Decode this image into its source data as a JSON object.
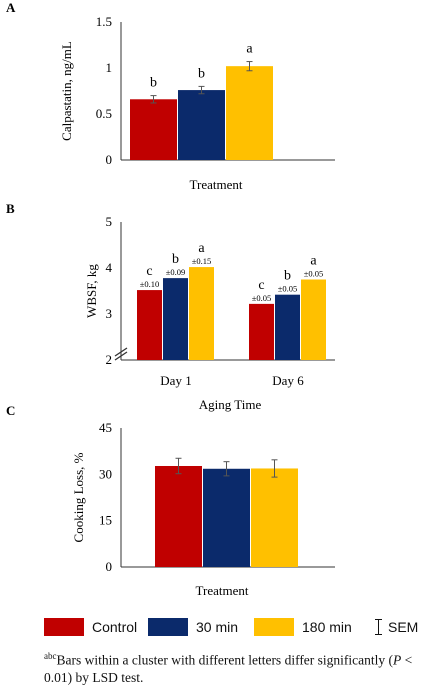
{
  "chart_data": [
    {
      "type": "bar",
      "panel": "A",
      "title": "",
      "xlabel": "Treatment",
      "ylabel": "Calpastatin, ng/mL",
      "ylim": [
        0,
        1.5
      ],
      "yticks": [
        "0",
        "0.5",
        "1",
        "1.5"
      ],
      "categories": [
        ""
      ],
      "series": [
        {
          "name": "Control",
          "values": [
            0.66
          ],
          "errors": [
            0.04
          ],
          "letters": [
            "b"
          ]
        },
        {
          "name": "30 min",
          "values": [
            0.76
          ],
          "errors": [
            0.04
          ],
          "letters": [
            "b"
          ]
        },
        {
          "name": "180 min",
          "values": [
            1.02
          ],
          "errors": [
            0.05
          ],
          "letters": [
            "a"
          ]
        }
      ],
      "grid": false
    },
    {
      "type": "bar",
      "panel": "B",
      "title": "",
      "xlabel": "Aging Time",
      "ylabel": "WBSF, kg",
      "ylim": [
        2,
        5
      ],
      "axis_break": true,
      "yticks": [
        "2",
        "3",
        "4",
        "5"
      ],
      "categories": [
        "Day 1",
        "Day 6"
      ],
      "series": [
        {
          "name": "Control",
          "values": [
            3.52,
            3.22
          ],
          "sem_labels": [
            "±0.10",
            "±0.05"
          ],
          "letters": [
            "c",
            "c"
          ]
        },
        {
          "name": "30 min",
          "values": [
            3.78,
            3.42
          ],
          "sem_labels": [
            "±0.09",
            "±0.05"
          ],
          "letters": [
            "b",
            "b"
          ]
        },
        {
          "name": "180 min",
          "values": [
            4.02,
            3.75
          ],
          "sem_labels": [
            "±0.15",
            "±0.05"
          ],
          "letters": [
            "a",
            "a"
          ]
        }
      ],
      "grid": false
    },
    {
      "type": "bar",
      "panel": "C",
      "title": "",
      "xlabel": "Treatment",
      "ylabel": "Cooking Loss, %",
      "ylim": [
        0,
        45
      ],
      "yticks": [
        "0",
        "15",
        "30",
        "45"
      ],
      "categories": [
        ""
      ],
      "series": [
        {
          "name": "Control",
          "values": [
            32.7
          ],
          "errors": [
            2.5
          ],
          "letters": [
            ""
          ]
        },
        {
          "name": "30 min",
          "values": [
            31.8
          ],
          "errors": [
            2.3
          ],
          "letters": [
            ""
          ]
        },
        {
          "name": "180 min",
          "values": [
            31.9
          ],
          "errors": [
            2.8
          ],
          "letters": [
            ""
          ]
        }
      ],
      "grid": false
    }
  ],
  "colors": {
    "control": "#c00000",
    "min30": "#0b2a6b",
    "min180": "#ffc000"
  },
  "legend": {
    "control": "Control",
    "min30": "30 min",
    "min180": "180 min",
    "sem": "SEM"
  },
  "footnote": {
    "sup": "abc",
    "text": "Bars within a cluster with different letters differ significantly (",
    "p_symbol": "P",
    "text2": " < 0.01) by LSD test."
  }
}
